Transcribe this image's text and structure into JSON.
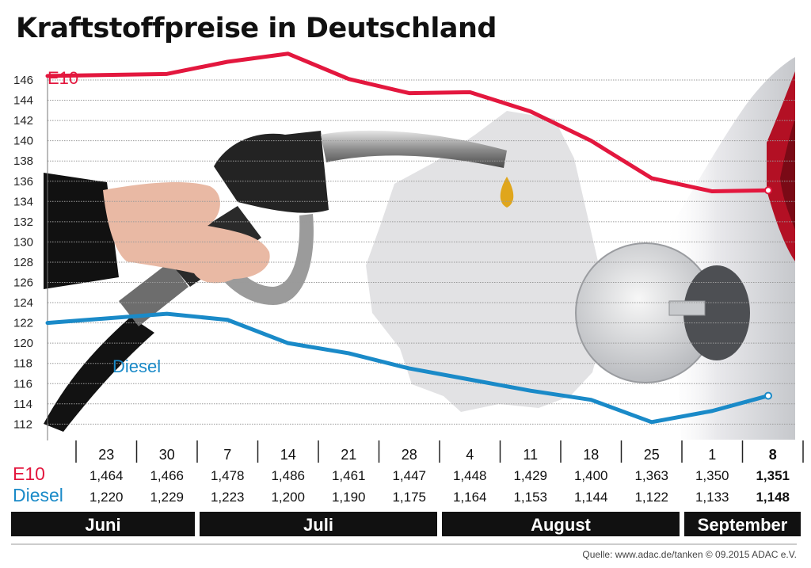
{
  "title": "Kraftstoffpreise in Deutschland",
  "source": "Quelle: www.adac.de/tanken  © 09.2015  ADAC e.V.",
  "colors": {
    "e10": "#e3173e",
    "diesel": "#1a8ac8",
    "grid": "#9a9a9a",
    "month_bar": "#111111"
  },
  "chart_data": {
    "type": "line",
    "title": "Kraftstoffpreise in Deutschland",
    "xlabel": "",
    "ylabel": "",
    "ylim": [
      111,
      147
    ],
    "yticks": [
      146,
      144,
      142,
      140,
      138,
      136,
      134,
      132,
      130,
      128,
      126,
      124,
      122,
      120,
      118,
      116,
      114,
      112
    ],
    "grid": true,
    "x": [
      "23",
      "30",
      "7",
      "14",
      "21",
      "28",
      "4",
      "11",
      "18",
      "25",
      "1",
      "8"
    ],
    "months": [
      {
        "label": "Juni",
        "span": 2
      },
      {
        "label": "Juli",
        "span": 4
      },
      {
        "label": "August",
        "span": 4
      },
      {
        "label": "September",
        "span": 2
      }
    ],
    "series": [
      {
        "name": "E10",
        "values": [
          146.4,
          146.6,
          147.8,
          148.6,
          146.1,
          144.7,
          144.8,
          142.9,
          140.0,
          136.3,
          135.0,
          135.1
        ],
        "table_values": [
          "1,464",
          "1,466",
          "1,478",
          "1,486",
          "1,461",
          "1,447",
          "1,448",
          "1,429",
          "1,400",
          "1,363",
          "1,350",
          "1,351"
        ]
      },
      {
        "name": "Diesel",
        "values": [
          122.0,
          122.9,
          122.3,
          120.0,
          119.0,
          117.5,
          116.4,
          115.3,
          114.4,
          112.2,
          113.3,
          114.8
        ],
        "table_values": [
          "1,220",
          "1,229",
          "1,223",
          "1,200",
          "1,190",
          "1,175",
          "1,164",
          "1,153",
          "1,144",
          "1,122",
          "1,133",
          "1,148"
        ]
      }
    ]
  }
}
